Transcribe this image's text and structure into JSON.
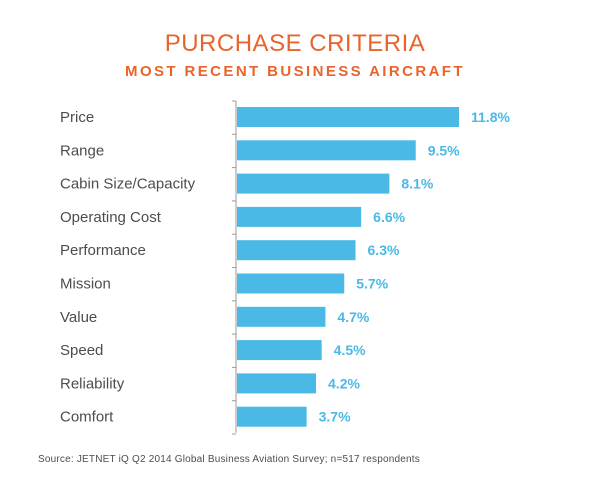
{
  "header": {
    "title": "PURCHASE CRITERIA",
    "subtitle": "MOST RECENT BUSINESS AIRCRAFT"
  },
  "chart_data": {
    "type": "bar",
    "orientation": "horizontal",
    "title": "PURCHASE CRITERIA",
    "subtitle": "MOST RECENT BUSINESS AIRCRAFT",
    "categories": [
      "Price",
      "Range",
      "Cabin Size/Capacity",
      "Operating Cost",
      "Performance",
      "Mission",
      "Value",
      "Speed",
      "Reliability",
      "Comfort"
    ],
    "values": [
      11.8,
      9.5,
      8.1,
      6.6,
      6.3,
      5.7,
      4.7,
      4.5,
      4.2,
      3.7
    ],
    "value_labels": [
      "11.8%",
      "9.5%",
      "8.1%",
      "6.6%",
      "6.3%",
      "5.7%",
      "4.7%",
      "4.5%",
      "4.2%",
      "3.7%"
    ],
    "xlim": [
      0,
      11.8
    ],
    "bar_color": "#4ab9e6",
    "grid": false,
    "legend": false
  },
  "footer": {
    "source": "Source: JETNET iQ Q2 2014 Global Business Aviation Survey; n=517 respondents"
  },
  "colors": {
    "title": "#e8642c",
    "bar": "#4ab9e6",
    "text": "#4d4d4d",
    "axis": "#999999"
  }
}
